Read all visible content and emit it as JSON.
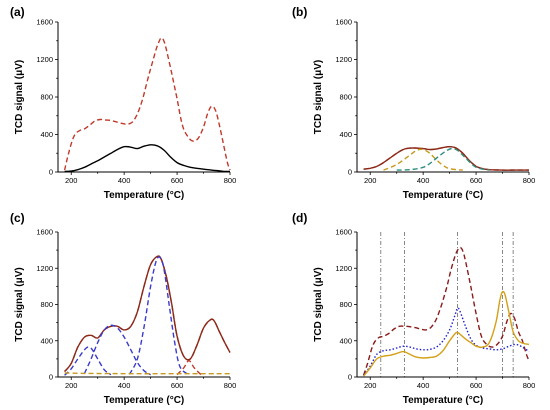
{
  "chart_data": [
    {
      "panel_label": "(a)",
      "type": "line",
      "xlabel": "Temperature (°C)",
      "ylabel": "TCD signal (μV)",
      "xlim": [
        150,
        800
      ],
      "ylim": [
        0,
        1600
      ],
      "xticks": [
        200,
        400,
        600,
        800
      ],
      "yticks": [
        0,
        400,
        800,
        1200,
        1600
      ],
      "series": [
        {
          "color": "#c0392b",
          "dash": "dashed",
          "x": [
            175,
            190,
            210,
            230,
            250,
            270,
            290,
            310,
            330,
            350,
            370,
            390,
            410,
            430,
            450,
            470,
            490,
            505,
            520,
            530,
            540,
            550,
            560,
            580,
            600,
            620,
            640,
            660,
            680,
            700,
            715,
            730,
            745,
            760,
            775,
            790,
            800
          ],
          "y": [
            20,
            200,
            380,
            440,
            460,
            500,
            545,
            560,
            555,
            550,
            535,
            520,
            510,
            530,
            620,
            780,
            1000,
            1150,
            1300,
            1380,
            1430,
            1400,
            1300,
            1050,
            780,
            500,
            380,
            330,
            360,
            480,
            620,
            700,
            660,
            500,
            300,
            100,
            20
          ]
        },
        {
          "color": "#000000",
          "dash": "solid",
          "x": [
            175,
            200,
            225,
            250,
            275,
            300,
            325,
            350,
            375,
            400,
            425,
            450,
            475,
            500,
            525,
            550,
            575,
            600,
            625,
            650,
            675,
            700,
            725,
            750,
            775,
            800
          ],
          "y": [
            5,
            10,
            25,
            50,
            85,
            120,
            160,
            200,
            240,
            270,
            265,
            250,
            275,
            290,
            280,
            235,
            160,
            100,
            70,
            50,
            40,
            30,
            22,
            15,
            8,
            5
          ]
        }
      ]
    },
    {
      "panel_label": "(b)",
      "type": "line",
      "xlabel": "Temperature (°C)",
      "ylabel": "TCD signal (μV)",
      "xlim": [
        150,
        800
      ],
      "ylim": [
        0,
        1600
      ],
      "xticks": [
        200,
        400,
        600,
        800
      ],
      "yticks": [
        0,
        400,
        800,
        1200,
        1600
      ],
      "series": [
        {
          "color": "#c0392b",
          "dash": "dashed",
          "x": [
            175,
            200,
            225,
            250,
            275,
            300,
            325,
            350,
            375,
            400,
            425,
            450,
            475,
            500,
            525,
            550,
            575,
            600,
            625,
            650,
            700,
            750,
            800
          ],
          "y": [
            30,
            40,
            60,
            100,
            150,
            200,
            240,
            255,
            255,
            250,
            240,
            245,
            260,
            270,
            255,
            200,
            120,
            60,
            35,
            25,
            20,
            20,
            20
          ]
        },
        {
          "color": "#8b2a1a",
          "dash": "solid",
          "x": [
            175,
            200,
            225,
            250,
            275,
            300,
            325,
            350,
            375,
            400,
            425,
            450,
            475,
            500,
            525,
            550,
            575,
            600,
            625,
            650,
            700,
            750,
            800
          ],
          "y": [
            30,
            40,
            60,
            100,
            150,
            200,
            240,
            255,
            255,
            250,
            240,
            245,
            260,
            270,
            255,
            200,
            120,
            60,
            35,
            25,
            20,
            20,
            20
          ]
        },
        {
          "color": "#c79a1e",
          "dash": "dashed",
          "x": [
            250,
            300,
            350,
            375,
            400,
            425,
            450,
            475,
            500,
            550
          ],
          "y": [
            20,
            80,
            180,
            230,
            240,
            200,
            130,
            70,
            35,
            20
          ]
        },
        {
          "color": "#2f8f7f",
          "dash": "dashed",
          "x": [
            300,
            350,
            400,
            430,
            460,
            490,
            510,
            530,
            560,
            600,
            650
          ],
          "y": [
            20,
            25,
            50,
            100,
            170,
            230,
            250,
            230,
            150,
            50,
            20
          ]
        }
      ]
    },
    {
      "panel_label": "(c)",
      "type": "line",
      "xlabel": "Temperature (°C)",
      "ylabel": "TCD signal (μV)",
      "xlim": [
        150,
        800
      ],
      "ylim": [
        0,
        1600
      ],
      "xticks": [
        200,
        400,
        600,
        800
      ],
      "yticks": [
        0,
        400,
        800,
        1200,
        1600
      ],
      "series": [
        {
          "color": "#c0392b",
          "dash": "dashed",
          "x": [
            175,
            200,
            225,
            250,
            275,
            300,
            325,
            350,
            375,
            400,
            425,
            450,
            475,
            500,
            525,
            540,
            560,
            580,
            600,
            625,
            650,
            675,
            700,
            725,
            740,
            760,
            780,
            800
          ],
          "y": [
            60,
            150,
            330,
            440,
            460,
            430,
            520,
            560,
            560,
            520,
            560,
            720,
            1000,
            1240,
            1330,
            1300,
            1100,
            800,
            450,
            230,
            200,
            350,
            540,
            630,
            620,
            500,
            380,
            270
          ]
        },
        {
          "color": "#8b2a1a",
          "dash": "solid",
          "x": [
            175,
            200,
            225,
            250,
            275,
            300,
            325,
            350,
            375,
            400,
            425,
            450,
            475,
            500,
            525,
            540,
            560,
            580,
            600,
            625,
            650,
            675,
            700,
            725,
            740,
            760,
            780,
            800
          ],
          "y": [
            60,
            150,
            330,
            440,
            460,
            430,
            520,
            560,
            560,
            520,
            560,
            720,
            1000,
            1240,
            1330,
            1300,
            1100,
            800,
            450,
            230,
            200,
            350,
            540,
            630,
            620,
            500,
            380,
            270
          ]
        },
        {
          "color": "#3a3acd",
          "dash": "dashed",
          "x": [
            175,
            200,
            225,
            250,
            265,
            280,
            300,
            325,
            350
          ],
          "y": [
            20,
            90,
            200,
            300,
            330,
            300,
            200,
            80,
            25
          ]
        },
        {
          "color": "#3a3acd",
          "dash": "dashed",
          "x": [
            250,
            275,
            300,
            325,
            350,
            375,
            400,
            425,
            450,
            475,
            500
          ],
          "y": [
            40,
            200,
            380,
            520,
            570,
            540,
            440,
            300,
            160,
            70,
            25
          ]
        },
        {
          "color": "#3a3acd",
          "dash": "dashed",
          "x": [
            420,
            450,
            475,
            500,
            520,
            535,
            550,
            570,
            590,
            610,
            640
          ],
          "y": [
            30,
            200,
            550,
            1000,
            1270,
            1320,
            1200,
            800,
            400,
            120,
            30
          ]
        },
        {
          "color": "#c0392b",
          "dash": "dashed",
          "x": [
            600,
            625,
            645,
            665,
            690
          ],
          "y": [
            25,
            100,
            180,
            100,
            25
          ]
        },
        {
          "color": "#c79a1e",
          "dash": "dashed",
          "x": [
            175,
            250,
            350,
            450,
            550,
            650,
            750,
            800
          ],
          "y": [
            45,
            40,
            38,
            36,
            36,
            36,
            36,
            36
          ]
        }
      ]
    },
    {
      "panel_label": "(d)",
      "type": "line",
      "xlabel": "Temperature (°C)",
      "ylabel": "TCD signal (μV)",
      "xlim": [
        150,
        800
      ],
      "ylim": [
        0,
        1600
      ],
      "xticks": [
        200,
        400,
        600,
        800
      ],
      "yticks": [
        0,
        400,
        800,
        1200,
        1600
      ],
      "vlines": [
        240,
        330,
        530,
        700,
        740
      ],
      "series": [
        {
          "color": "#8b1a1a",
          "dash": "dashed",
          "x": [
            175,
            190,
            210,
            230,
            250,
            270,
            290,
            310,
            330,
            350,
            370,
            390,
            410,
            430,
            450,
            470,
            490,
            505,
            520,
            530,
            540,
            550,
            560,
            580,
            600,
            620,
            640,
            660,
            680,
            700,
            715,
            730,
            745,
            760,
            775,
            790,
            800
          ],
          "y": [
            20,
            150,
            350,
            430,
            450,
            480,
            530,
            560,
            560,
            555,
            545,
            530,
            520,
            550,
            640,
            800,
            1000,
            1180,
            1330,
            1400,
            1430,
            1390,
            1280,
            1000,
            700,
            450,
            360,
            330,
            360,
            450,
            600,
            700,
            650,
            500,
            400,
            250,
            180
          ]
        },
        {
          "color": "#1f1fd0",
          "dash": "dotted",
          "x": [
            175,
            200,
            225,
            250,
            275,
            300,
            325,
            350,
            375,
            400,
            425,
            450,
            475,
            500,
            520,
            530,
            540,
            560,
            580,
            600,
            625,
            650,
            675,
            700,
            725,
            750,
            775,
            800
          ],
          "y": [
            15,
            120,
            250,
            290,
            300,
            320,
            340,
            330,
            310,
            300,
            305,
            330,
            400,
            520,
            680,
            760,
            720,
            560,
            420,
            350,
            320,
            310,
            300,
            310,
            340,
            360,
            330,
            280
          ]
        },
        {
          "color": "#d4a017",
          "dash": "solid",
          "x": [
            175,
            200,
            225,
            250,
            275,
            300,
            325,
            350,
            375,
            400,
            425,
            450,
            475,
            500,
            525,
            540,
            560,
            580,
            600,
            625,
            650,
            675,
            690,
            700,
            710,
            725,
            740,
            760,
            780,
            800
          ],
          "y": [
            10,
            100,
            200,
            230,
            240,
            260,
            280,
            250,
            220,
            210,
            215,
            230,
            290,
            400,
            490,
            470,
            420,
            380,
            340,
            330,
            380,
            600,
            850,
            940,
            900,
            700,
            500,
            400,
            370,
            360
          ]
        }
      ]
    }
  ]
}
